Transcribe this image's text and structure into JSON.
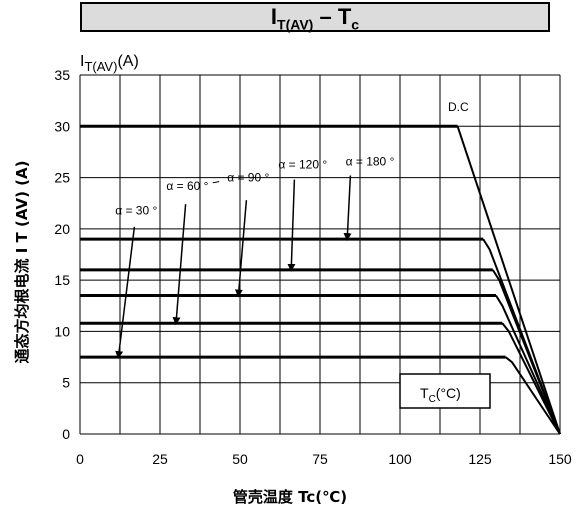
{
  "chart_data": {
    "type": "line",
    "title_main": "I",
    "title_sub": "T(AV)",
    "title_dash": " – ",
    "title_main2": "T",
    "title_sub2": "c",
    "y_unit_main": "I",
    "y_unit_sub": "T(AV)",
    "y_unit_suffix": "(A)",
    "xlabel": "管壳温度 Tc(℃)",
    "ylabel": "通态方均根电流 I T (AV) (A)",
    "xlim": [
      0,
      150
    ],
    "ylim": [
      0,
      35
    ],
    "xticks": [
      0,
      25,
      50,
      75,
      100,
      125,
      150
    ],
    "yticks": [
      0,
      5,
      10,
      15,
      20,
      25,
      30,
      35
    ],
    "x_grid": [
      0,
      12.5,
      25,
      37.5,
      50,
      62.5,
      75,
      87.5,
      100,
      112.5,
      125,
      137.5,
      150
    ],
    "y_grid": [
      0,
      5,
      10,
      15,
      20,
      25,
      30,
      35
    ],
    "grid": true,
    "tc_label_main": "T",
    "tc_label_sub": "C",
    "tc_label_suffix": "(°C)",
    "series": [
      {
        "name": "D.C",
        "points": [
          [
            0,
            30
          ],
          [
            118,
            30
          ],
          [
            150,
            0
          ]
        ]
      },
      {
        "name": "α = 180 °",
        "points": [
          [
            0,
            19
          ],
          [
            126,
            19
          ],
          [
            128,
            18
          ],
          [
            150,
            0
          ]
        ]
      },
      {
        "name": "α = 120 °",
        "points": [
          [
            0,
            16
          ],
          [
            129,
            16
          ],
          [
            131,
            15
          ],
          [
            150,
            0
          ]
        ]
      },
      {
        "name": "α = 90 °",
        "points": [
          [
            0,
            13.5
          ],
          [
            130,
            13.5
          ],
          [
            132,
            12.5
          ],
          [
            150,
            0
          ]
        ]
      },
      {
        "name": "α = 60 °",
        "points": [
          [
            0,
            10.8
          ],
          [
            132,
            10.8
          ],
          [
            134,
            10
          ],
          [
            150,
            0
          ]
        ]
      },
      {
        "name": "α = 30 °",
        "points": [
          [
            0,
            7.5
          ],
          [
            133,
            7.5
          ],
          [
            135,
            7
          ],
          [
            150,
            0
          ]
        ]
      }
    ],
    "annotations": [
      {
        "text": "D.C",
        "x": 115,
        "y": 31.5,
        "arrow_to": null
      },
      {
        "text": "α = 180 °",
        "x": 83,
        "y": 26.2,
        "arrow_from": [
          84.5,
          25.2
        ],
        "arrow_to": [
          83.5,
          19
        ]
      },
      {
        "text": "α = 120 °",
        "x": 62,
        "y": 25.9,
        "arrow_from": [
          67,
          24.8
        ],
        "arrow_to": [
          66,
          16
        ]
      },
      {
        "text": "α = 90 °",
        "x": 46,
        "y": 24.6,
        "arrow_from": [
          52,
          22.8
        ],
        "arrow_to": [
          49.5,
          13.5
        ]
      },
      {
        "text": "α = 60 °",
        "x": 27,
        "y": 23.8,
        "arrow_from": [
          33,
          22.4
        ],
        "arrow_to": [
          30,
          10.8
        ]
      },
      {
        "text": "α = 30 °",
        "x": 11,
        "y": 21.4,
        "arrow_from": [
          17,
          20.2
        ],
        "arrow_to": [
          12,
          7.5
        ]
      }
    ]
  }
}
